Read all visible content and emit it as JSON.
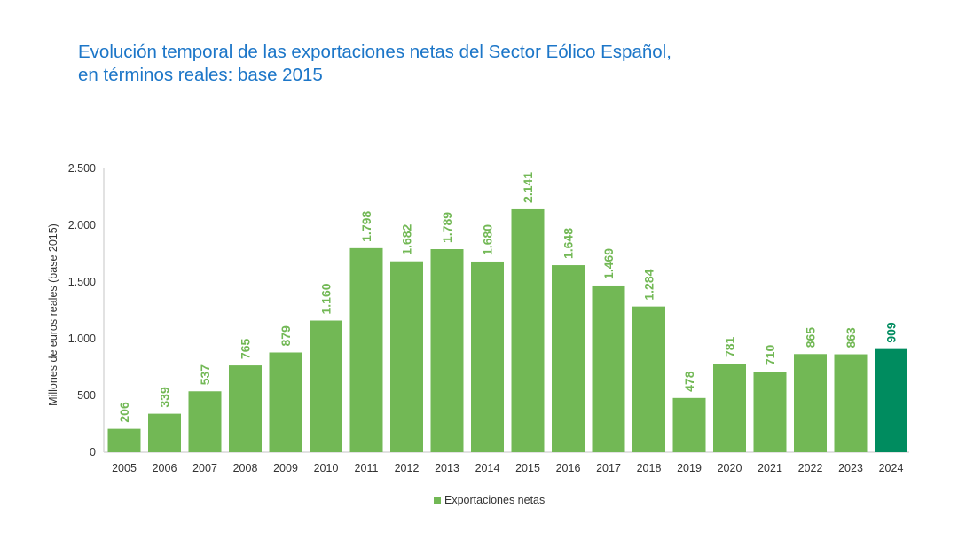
{
  "title_line1": "Evolución temporal de las exportaciones netas del Sector Eólico Español,",
  "title_line2": "en términos reales: base 2015",
  "chart_data": {
    "type": "bar",
    "title": "Evolución temporal de las exportaciones netas del Sector Eólico Español, en términos reales: base 2015",
    "xlabel": "",
    "ylabel": "Millones de euros reales (base 2015)",
    "ylim": [
      0,
      2500
    ],
    "yticks": [
      0,
      500,
      1000,
      1500,
      2000,
      2500
    ],
    "ytick_labels": [
      "0",
      "500",
      "1.000",
      "1.500",
      "2.000",
      "2.500"
    ],
    "grid": false,
    "legend_position": "bottom",
    "categories": [
      "2005",
      "2006",
      "2007",
      "2008",
      "2009",
      "2010",
      "2011",
      "2012",
      "2013",
      "2014",
      "2015",
      "2016",
      "2017",
      "2018",
      "2019",
      "2020",
      "2021",
      "2022",
      "2023",
      "2024"
    ],
    "series": [
      {
        "name": "Exportaciones netas",
        "values": [
          206,
          339,
          537,
          765,
          879,
          1160,
          1798,
          1682,
          1789,
          1680,
          2141,
          1648,
          1469,
          1284,
          478,
          781,
          710,
          865,
          863,
          909
        ],
        "labels": [
          "206",
          "339",
          "537",
          "765",
          "879",
          "1.160",
          "1.798",
          "1.682",
          "1.789",
          "1.680",
          "2.141",
          "1.648",
          "1.469",
          "1.284",
          "478",
          "781",
          "710",
          "865",
          "863",
          "909"
        ],
        "color": "#72b855",
        "highlight_color": "#008c5f",
        "highlight_category": "2024"
      }
    ]
  }
}
